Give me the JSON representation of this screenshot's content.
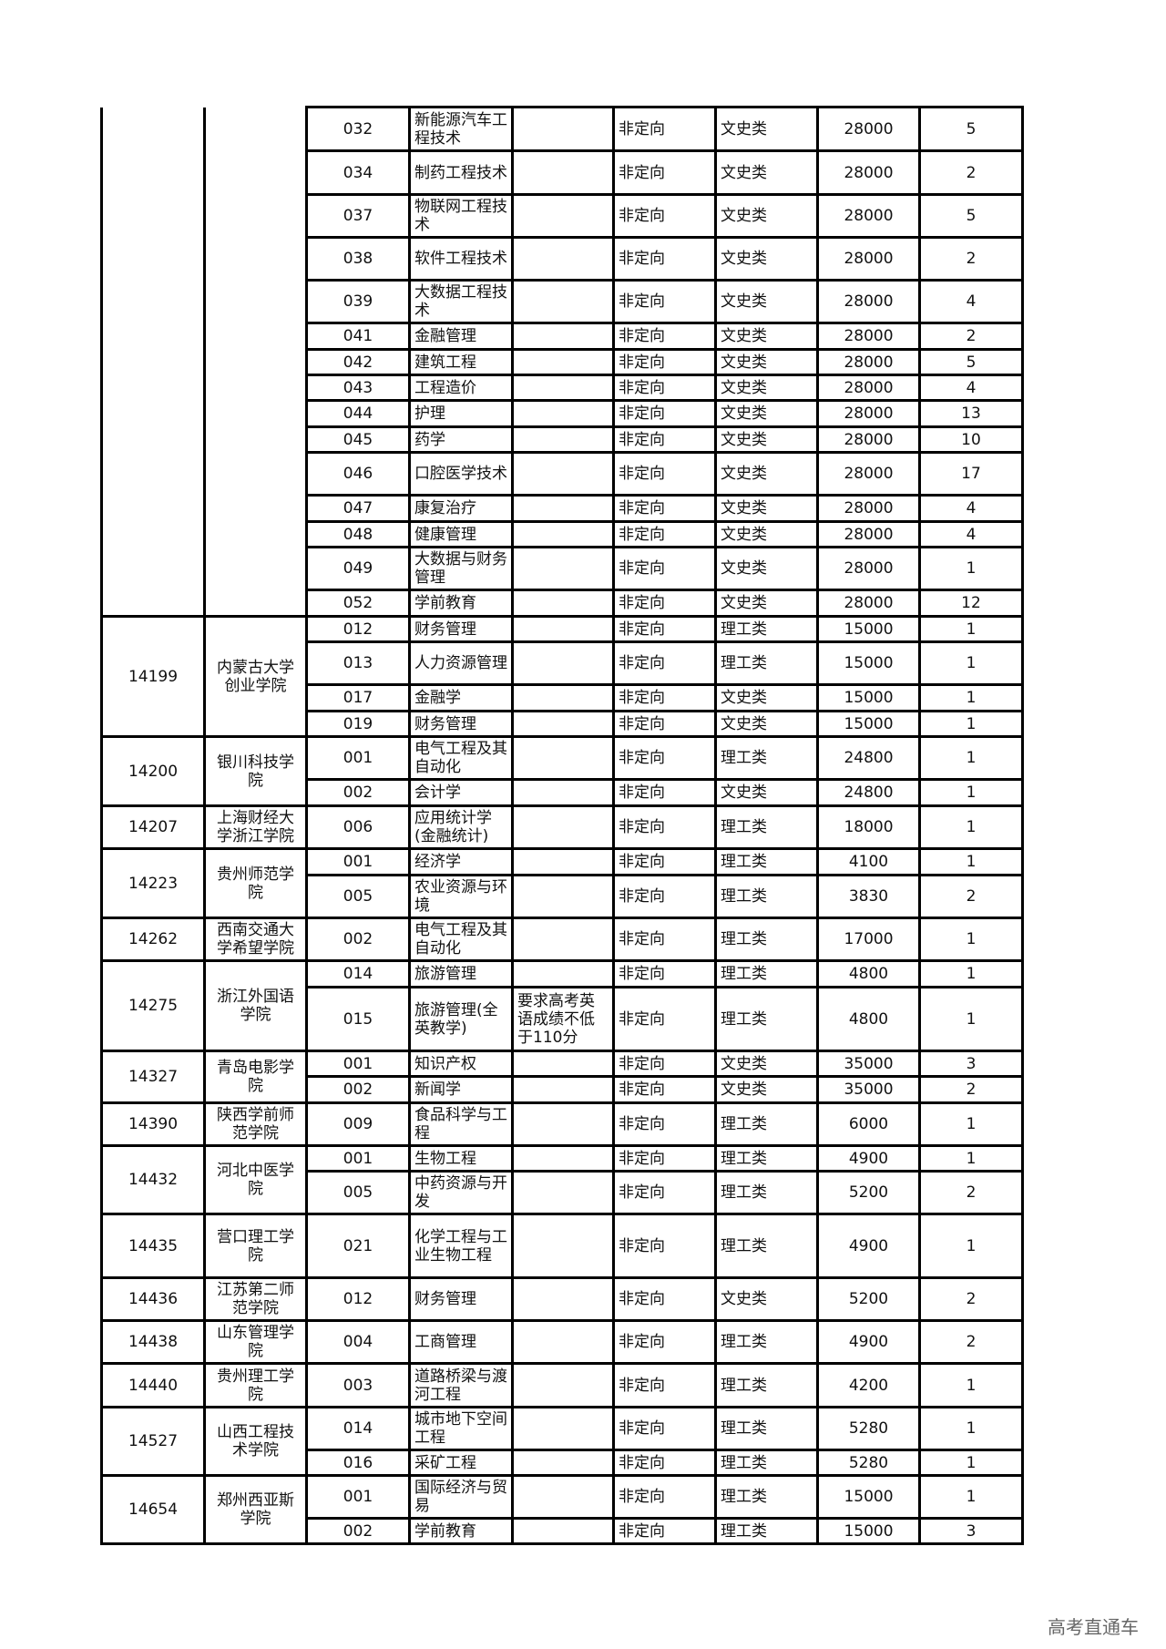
{
  "groups": [
    {
      "code": "",
      "school": "",
      "rows": [
        [
          "032",
          "新能源汽车工程技术",
          "",
          "非定向",
          "文史类",
          "28000",
          "5"
        ],
        [
          "034",
          "制药工程技术",
          "",
          "非定向",
          "文史类",
          "28000",
          "2"
        ],
        [
          "037",
          "物联网工程技术",
          "",
          "非定向",
          "文史类",
          "28000",
          "5"
        ],
        [
          "038",
          "软件工程技术",
          "",
          "非定向",
          "文史类",
          "28000",
          "2"
        ],
        [
          "039",
          "大数据工程技术",
          "",
          "非定向",
          "文史类",
          "28000",
          "4"
        ],
        [
          "041",
          "金融管理",
          "",
          "非定向",
          "文史类",
          "28000",
          "2"
        ],
        [
          "042",
          "建筑工程",
          "",
          "非定向",
          "文史类",
          "28000",
          "5"
        ],
        [
          "043",
          "工程造价",
          "",
          "非定向",
          "文史类",
          "28000",
          "4"
        ],
        [
          "044",
          "护理",
          "",
          "非定向",
          "文史类",
          "28000",
          "13"
        ],
        [
          "045",
          "药学",
          "",
          "非定向",
          "文史类",
          "28000",
          "10"
        ],
        [
          "046",
          "口腔医学技术",
          "",
          "非定向",
          "文史类",
          "28000",
          "17"
        ],
        [
          "047",
          "康复治疗",
          "",
          "非定向",
          "文史类",
          "28000",
          "4"
        ],
        [
          "048",
          "健康管理",
          "",
          "非定向",
          "文史类",
          "28000",
          "4"
        ],
        [
          "049",
          "大数据与财务管理",
          "",
          "非定向",
          "文史类",
          "28000",
          "1"
        ],
        [
          "052",
          "学前教育",
          "",
          "非定向",
          "文史类",
          "28000",
          "12"
        ]
      ]
    },
    {
      "code": "14199",
      "school": "内蒙古大学创业学院",
      "rows": [
        [
          "012",
          "财务管理",
          "",
          "非定向",
          "理工类",
          "15000",
          "1"
        ],
        [
          "013",
          "人力资源管理",
          "",
          "非定向",
          "理工类",
          "15000",
          "1"
        ],
        [
          "017",
          "金融学",
          "",
          "非定向",
          "文史类",
          "15000",
          "1"
        ],
        [
          "019",
          "财务管理",
          "",
          "非定向",
          "文史类",
          "15000",
          "1"
        ]
      ]
    },
    {
      "code": "14200",
      "school": "银川科技学院",
      "rows": [
        [
          "001",
          "电气工程及其自动化",
          "",
          "非定向",
          "理工类",
          "24800",
          "1"
        ],
        [
          "002",
          "会计学",
          "",
          "非定向",
          "文史类",
          "24800",
          "1"
        ]
      ]
    },
    {
      "code": "14207",
      "school": "上海财经大学浙江学院",
      "rows": [
        [
          "006",
          "应用统计学(金融统计)",
          "",
          "非定向",
          "理工类",
          "18000",
          "1"
        ]
      ]
    },
    {
      "code": "14223",
      "school": "贵州师范学院",
      "rows": [
        [
          "001",
          "经济学",
          "",
          "非定向",
          "理工类",
          "4100",
          "1"
        ],
        [
          "005",
          "农业资源与环境",
          "",
          "非定向",
          "理工类",
          "3830",
          "2"
        ]
      ]
    },
    {
      "code": "14262",
      "school": "西南交通大学希望学院",
      "rows": [
        [
          "002",
          "电气工程及其自动化",
          "",
          "非定向",
          "理工类",
          "17000",
          "1"
        ]
      ]
    },
    {
      "code": "14275",
      "school": "浙江外国语学院",
      "rows": [
        [
          "014",
          "旅游管理",
          "",
          "非定向",
          "理工类",
          "4800",
          "1"
        ],
        [
          "015",
          "旅游管理(全英教学)",
          "要求高考英语成绩不低于110分",
          "非定向",
          "理工类",
          "4800",
          "1"
        ]
      ]
    },
    {
      "code": "14327",
      "school": "青岛电影学院",
      "rows": [
        [
          "001",
          "知识产权",
          "",
          "非定向",
          "文史类",
          "35000",
          "3"
        ],
        [
          "002",
          "新闻学",
          "",
          "非定向",
          "文史类",
          "35000",
          "2"
        ]
      ]
    },
    {
      "code": "14390",
      "school": "陕西学前师范学院",
      "rows": [
        [
          "009",
          "食品科学与工程",
          "",
          "非定向",
          "理工类",
          "6000",
          "1"
        ]
      ]
    },
    {
      "code": "14432",
      "school": "河北中医学院",
      "rows": [
        [
          "001",
          "生物工程",
          "",
          "非定向",
          "理工类",
          "4900",
          "1"
        ],
        [
          "005",
          "中药资源与开发",
          "",
          "非定向",
          "理工类",
          "5200",
          "2"
        ]
      ]
    },
    {
      "code": "14435",
      "school": "营口理工学院",
      "rows": [
        [
          "021",
          "化学工程与工业生物工程",
          "",
          "非定向",
          "理工类",
          "4900",
          "1"
        ]
      ]
    },
    {
      "code": "14436",
      "school": "江苏第二师范学院",
      "rows": [
        [
          "012",
          "财务管理",
          "",
          "非定向",
          "文史类",
          "5200",
          "2"
        ]
      ]
    },
    {
      "code": "14438",
      "school": "山东管理学院",
      "rows": [
        [
          "004",
          "工商管理",
          "",
          "非定向",
          "理工类",
          "4900",
          "2"
        ]
      ]
    },
    {
      "code": "14440",
      "school": "贵州理工学院",
      "rows": [
        [
          "003",
          "道路桥梁与渡河工程",
          "",
          "非定向",
          "理工类",
          "4200",
          "1"
        ]
      ]
    },
    {
      "code": "14527",
      "school": "山西工程技术学院",
      "rows": [
        [
          "014",
          "城市地下空间工程",
          "",
          "非定向",
          "理工类",
          "5280",
          "1"
        ],
        [
          "016",
          "采矿工程",
          "",
          "非定向",
          "理工类",
          "5280",
          "1"
        ]
      ]
    },
    {
      "code": "14654",
      "school": "郑州西亚斯学院",
      "rows": [
        [
          "001",
          "国际经济与贸易",
          "",
          "非定向",
          "理工类",
          "15000",
          "1"
        ],
        [
          "002",
          "学前教育",
          "",
          "非定向",
          "理工类",
          "15000",
          "3"
        ]
      ]
    }
  ],
  "watermark": "高考直通车"
}
